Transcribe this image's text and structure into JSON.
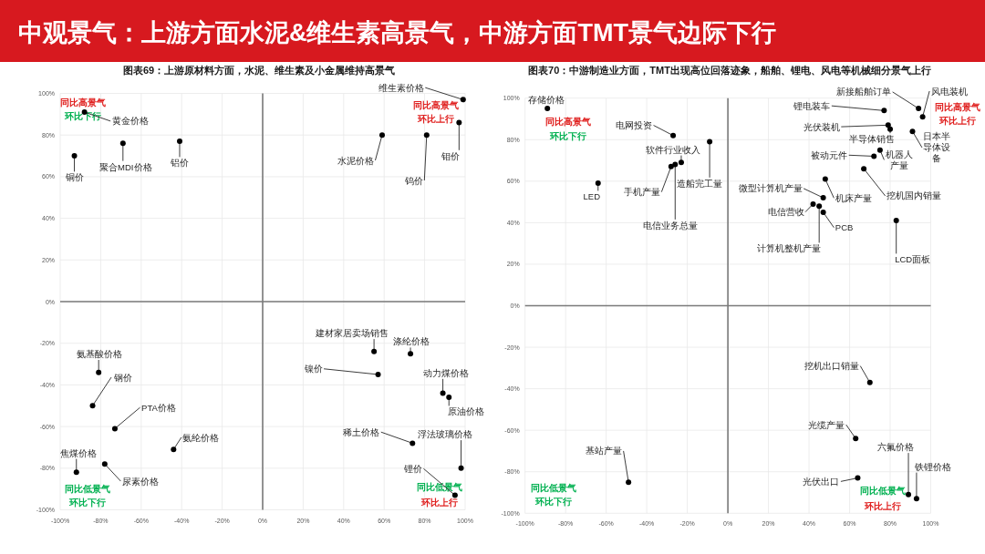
{
  "chart_data": [
    {
      "type": "other",
      "title": "中观景气：上游方面水泥&维生素高景气，中游方面TMT景气边际下行"
    },
    {
      "type": "scatter",
      "title": "图表69：上游原材料方面，水泥、维生素及小金属维持高景气",
      "color": "#000000",
      "marker": "circle",
      "grid": true,
      "xlim": [
        -100,
        100
      ],
      "ylim": [
        -100,
        100
      ],
      "xticks": [
        {
          "value": -100,
          "label": "-100%"
        },
        {
          "value": -80,
          "label": "-80%"
        },
        {
          "value": -60,
          "label": "-60%"
        },
        {
          "value": -40,
          "label": "-40%"
        },
        {
          "value": -20,
          "label": "-20%"
        },
        {
          "value": 0,
          "label": "0%"
        },
        {
          "value": 20,
          "label": "20%"
        },
        {
          "value": 40,
          "label": "40%"
        },
        {
          "value": 60,
          "label": "60%"
        },
        {
          "value": 80,
          "label": "80%"
        },
        {
          "value": 100,
          "label": "100%"
        }
      ],
      "yticks": [
        {
          "value": -100,
          "label": "-100%"
        },
        {
          "value": -80,
          "label": "-80%"
        },
        {
          "value": -60,
          "label": "-60%"
        },
        {
          "value": -40,
          "label": "-40%"
        },
        {
          "value": -20,
          "label": "-20%"
        },
        {
          "value": 0,
          "label": "0%"
        },
        {
          "value": 20,
          "label": "20%"
        },
        {
          "value": 40,
          "label": "40%"
        },
        {
          "value": 60,
          "label": "60%"
        },
        {
          "value": 80,
          "label": "80%"
        },
        {
          "value": 100,
          "label": "100%"
        }
      ],
      "x": [
        -88,
        -93,
        -69,
        -41,
        99,
        59,
        81,
        97,
        -81,
        -84,
        -73,
        -44,
        -92,
        -78,
        55,
        73,
        57,
        89,
        92,
        74,
        98,
        95
      ],
      "values": [
        91,
        70,
        76,
        77,
        97,
        80,
        80,
        86,
        -34,
        -50,
        -61,
        -71,
        -82,
        -78,
        -24,
        -25,
        -35,
        -44,
        -46,
        -68,
        -80,
        -93
      ],
      "annotations": [
        "同比高景气",
        "环比下行",
        "同比高景气",
        "环比上行",
        "同比低景气",
        "环比下行",
        "同比低景气",
        "环比上行",
        {
          "text": "黄金价格",
          "x": -88,
          "y": 91
        },
        {
          "text": "铜价",
          "x": -93,
          "y": 70
        },
        {
          "text": "聚合MDI价格",
          "x": -69,
          "y": 76
        },
        {
          "text": "铝价",
          "x": -41,
          "y": 77
        },
        {
          "text": "维生素价格",
          "x": 99,
          "y": 97
        },
        {
          "text": "水泥价格",
          "x": 59,
          "y": 80
        },
        {
          "text": "钨价",
          "x": 81,
          "y": 80
        },
        {
          "text": "钼价",
          "x": 97,
          "y": 86
        },
        {
          "text": "氨基酸价格",
          "x": -81,
          "y": -34
        },
        {
          "text": "钢价",
          "x": -84,
          "y": -50
        },
        {
          "text": "PTA价格",
          "x": -73,
          "y": -61
        },
        {
          "text": "氨纶价格",
          "x": -44,
          "y": -71
        },
        {
          "text": "焦煤价格",
          "x": -92,
          "y": -82
        },
        {
          "text": "尿素价格",
          "x": -78,
          "y": -78
        },
        {
          "text": "建材家居卖场销售",
          "x": 55,
          "y": -24
        },
        {
          "text": "涤纶价格",
          "x": 73,
          "y": -25
        },
        {
          "text": "镍价",
          "x": 57,
          "y": -35
        },
        {
          "text": "动力煤价格",
          "x": 89,
          "y": -44
        },
        {
          "text": "原油价格",
          "x": 92,
          "y": -46
        },
        {
          "text": "稀土价格",
          "x": 74,
          "y": -68
        },
        {
          "text": "浮法玻璃价格",
          "x": 98,
          "y": -80
        },
        {
          "text": "锂价",
          "x": 95,
          "y": -93
        }
      ]
    },
    {
      "type": "scatter",
      "title": "图表70：中游制造业方面，TMT出现高位回落迹象，船舶、锂电、风电等机械细分景气上行",
      "color": "#000000",
      "marker": "circle",
      "grid": true,
      "xlim": [
        -100,
        100
      ],
      "ylim": [
        -100,
        100
      ],
      "xticks": [
        {
          "value": -100,
          "label": "-100%"
        },
        {
          "value": -80,
          "label": "-80%"
        },
        {
          "value": -60,
          "label": "-60%"
        },
        {
          "value": -40,
          "label": "-40%"
        },
        {
          "value": -20,
          "label": "-20%"
        },
        {
          "value": 0,
          "label": "0%"
        },
        {
          "value": 20,
          "label": "20%"
        },
        {
          "value": 40,
          "label": "40%"
        },
        {
          "value": 60,
          "label": "60%"
        },
        {
          "value": 80,
          "label": "80%"
        },
        {
          "value": 100,
          "label": "100%"
        }
      ],
      "yticks": [
        {
          "value": -100,
          "label": "-100%"
        },
        {
          "value": -80,
          "label": "-80%"
        },
        {
          "value": -60,
          "label": "-60%"
        },
        {
          "value": -40,
          "label": "-40%"
        },
        {
          "value": -20,
          "label": "-20%"
        },
        {
          "value": 0,
          "label": "0%"
        },
        {
          "value": 20,
          "label": "20%"
        },
        {
          "value": 40,
          "label": "40%"
        },
        {
          "value": 60,
          "label": "60%"
        },
        {
          "value": 80,
          "label": "80%"
        },
        {
          "value": 100,
          "label": "100%"
        }
      ],
      "x": [
        -89,
        -27,
        -9,
        -23,
        -28,
        -26,
        -64,
        -49,
        94,
        77,
        96,
        91,
        79,
        80,
        72,
        75,
        67,
        48,
        47,
        42,
        45,
        47,
        83,
        70,
        63,
        64,
        89,
        93
      ],
      "values": [
        95,
        82,
        79,
        69,
        67,
        68,
        59,
        -85,
        95,
        94,
        91,
        84,
        87,
        85,
        72,
        75,
        66,
        61,
        52,
        49,
        48,
        45,
        41,
        -37,
        -64,
        -83,
        -91,
        -93
      ],
      "annotations": [
        "同比高景气",
        "环比下行",
        "同比高景气",
        "环比上行",
        "同比低景气",
        "环比下行",
        "同比低景气",
        "环比上行",
        {
          "text": "存储价格",
          "x": -89,
          "y": 95
        },
        {
          "text": "电网投资",
          "x": -27,
          "y": 82
        },
        {
          "text": "造船完工量",
          "x": -9,
          "y": 79
        },
        {
          "text": "软件行业收入",
          "x": -23,
          "y": 69
        },
        {
          "text": "手机产量",
          "x": -28,
          "y": 67
        },
        {
          "text": "电信业务总量",
          "x": -26,
          "y": 68
        },
        {
          "text": "LED",
          "x": -64,
          "y": 59
        },
        {
          "text": "基站产量",
          "x": -49,
          "y": -85
        },
        {
          "text": "新接船舶订单",
          "x": 94,
          "y": 95
        },
        {
          "text": "锂电装车",
          "x": 77,
          "y": 94
        },
        {
          "text": "风电装机",
          "x": 96,
          "y": 91
        },
        {
          "text": "日本半导体设备",
          "x": 91,
          "y": 84
        },
        {
          "text": "光伏装机",
          "x": 79,
          "y": 87
        },
        {
          "text": "半导体销售",
          "x": 80,
          "y": 85
        },
        {
          "text": "被动元件",
          "x": 72,
          "y": 72
        },
        {
          "text": "机器人产量",
          "x": 75,
          "y": 75
        },
        {
          "text": "挖机国内销量",
          "x": 67,
          "y": 66
        },
        {
          "text": "机床产量",
          "x": 48,
          "y": 61
        },
        {
          "text": "微型计算机产量",
          "x": 47,
          "y": 52
        },
        {
          "text": "电信营收",
          "x": 42,
          "y": 49
        },
        {
          "text": "计算机整机产量",
          "x": 45,
          "y": 48
        },
        {
          "text": "PCB",
          "x": 47,
          "y": 45
        },
        {
          "text": "LCD面板",
          "x": 83,
          "y": 41
        },
        {
          "text": "挖机出口销量",
          "x": 70,
          "y": -37
        },
        {
          "text": "光缆产量",
          "x": 63,
          "y": -64
        },
        {
          "text": "光伏出口",
          "x": 64,
          "y": -83
        },
        {
          "text": "六氟价格",
          "x": 89,
          "y": -91
        },
        {
          "text": "铁锂价格",
          "x": 93,
          "y": -93
        }
      ]
    }
  ]
}
